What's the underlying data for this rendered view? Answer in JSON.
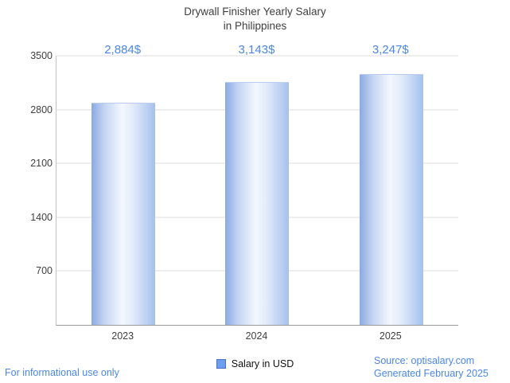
{
  "title": {
    "line1": "Drywall Finisher Yearly Salary",
    "line2": "in Philippines"
  },
  "chart_data": {
    "type": "bar",
    "title": "Drywall Finisher Yearly Salary in Philippines",
    "categories": [
      "2023",
      "2024",
      "2025"
    ],
    "values": [
      2884,
      3143,
      3247
    ],
    "value_labels": [
      "2,884$",
      "3,143$",
      "3,247$"
    ],
    "xlabel": "",
    "ylabel": "",
    "ylim": [
      0,
      3500
    ],
    "yticks": [
      700,
      1400,
      2100,
      2800,
      3500
    ],
    "grid": true,
    "legend_position": "bottom-center",
    "legend": [
      {
        "label": "Salary in USD",
        "color": "#6d9eeb",
        "border": "#4472c4"
      }
    ]
  },
  "footer": {
    "disclaimer": "For informational use only",
    "source": "Source: optisalary.com",
    "generated": "Generated February 2025"
  },
  "colors": {
    "accent_blue": "#4a86e8",
    "text_dark": "#3f3f3f",
    "grid_color": "#dcdcdc",
    "axis_color": "#9a9a9a",
    "bar_edge_left": "#8aa9e3",
    "bar_mid": "#f4f8fe",
    "bar_edge_right": "#a6c0ec"
  }
}
